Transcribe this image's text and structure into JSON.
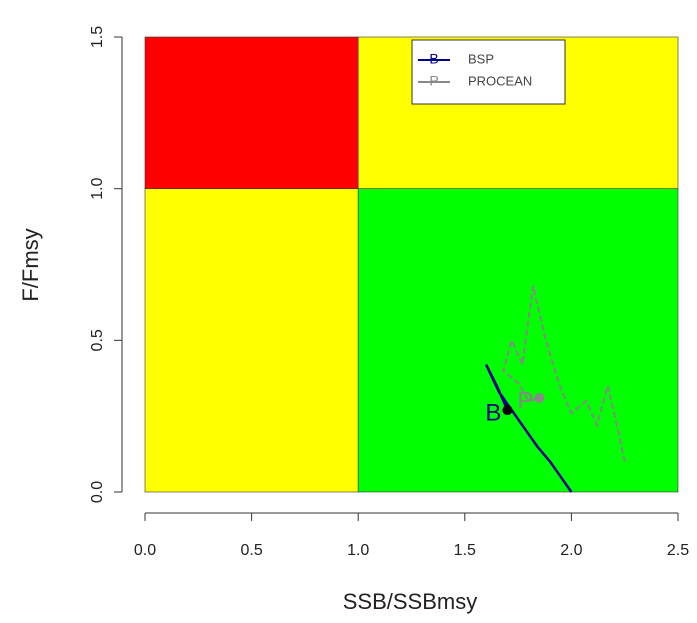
{
  "chart_data": {
    "type": "line",
    "x_label": "SSB/SSBmsy",
    "y_label": "F/Fmsy",
    "xlim": [
      0,
      2.5
    ],
    "ylim": [
      0,
      1.5
    ],
    "xticks": [
      {
        "value": 0,
        "label": "0.0"
      },
      {
        "value": 0.5,
        "label": "0.5"
      },
      {
        "value": 1,
        "label": "1.0"
      },
      {
        "value": 1.5,
        "label": "1.5"
      },
      {
        "value": 2,
        "label": "2.0"
      },
      {
        "value": 2.5,
        "label": "2.5"
      }
    ],
    "yticks": [
      {
        "value": 0,
        "label": "0.0"
      },
      {
        "value": 0.5,
        "label": "0.5"
      },
      {
        "value": 1,
        "label": "1.0"
      },
      {
        "value": 1.5,
        "label": "1.5"
      }
    ],
    "zones": [
      {
        "x": [
          0,
          1
        ],
        "y": [
          0,
          1
        ],
        "color": "#ffff00"
      },
      {
        "x": [
          1,
          2.5
        ],
        "y": [
          0,
          1
        ],
        "color": "#00ff00"
      },
      {
        "x": [
          0,
          1
        ],
        "y": [
          1,
          1.5
        ],
        "color": "#ff0000"
      },
      {
        "x": [
          1,
          2.5
        ],
        "y": [
          1,
          1.5
        ],
        "color": "#ffff00"
      }
    ],
    "series": [
      {
        "name": "BSP",
        "color": "#00008b",
        "label": "B",
        "x": [
          2.0,
          1.95,
          1.9,
          1.84,
          1.78,
          1.72,
          1.66,
          1.6,
          1.65,
          1.7
        ],
        "values": [
          0.0,
          0.05,
          0.1,
          0.15,
          0.21,
          0.27,
          0.33,
          0.42,
          0.35,
          0.27
        ]
      },
      {
        "name": "PROCEAN",
        "color": "#888888",
        "label": "P",
        "x": [
          2.25,
          2.22,
          2.17,
          2.12,
          2.07,
          2.0,
          1.95,
          1.88,
          1.82,
          1.77,
          1.72,
          1.68,
          1.75,
          1.8,
          1.85
        ],
        "values": [
          0.1,
          0.2,
          0.35,
          0.22,
          0.3,
          0.26,
          0.34,
          0.5,
          0.68,
          0.42,
          0.5,
          0.4,
          0.36,
          0.3,
          0.31
        ]
      }
    ],
    "legend": "top"
  }
}
